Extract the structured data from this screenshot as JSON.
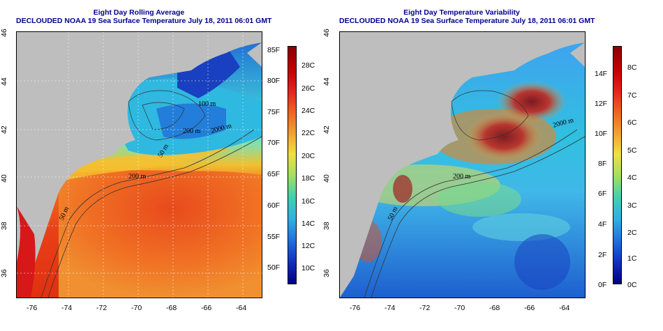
{
  "left_panel": {
    "title_line1": "Eight Day Rolling Average",
    "title_line2": "DECLOUDED NOAA 19 Sea Surface Temperature July 18, 2011 06:01 GMT",
    "y_ticks": [
      "46",
      "44",
      "42",
      "40",
      "38",
      "36"
    ],
    "x_ticks": [
      "-76",
      "-74",
      "-72",
      "-70",
      "-68",
      "-66",
      "-64"
    ],
    "contours": [
      "2000 m",
      "200 m",
      "200 m",
      "50 m",
      "50 m",
      "100 m",
      "100 m"
    ],
    "colorbar_f": [
      "85F",
      "80F",
      "75F",
      "70F",
      "65F",
      "60F",
      "55F",
      "50F"
    ],
    "colorbar_c": [
      "28C",
      "26C",
      "24C",
      "22C",
      "20C",
      "18C",
      "16C",
      "14C",
      "12C",
      "10C"
    ],
    "colors": {
      "land": "#bebebe",
      "warm": "#e8401a",
      "cool": "#2a8fd6"
    }
  },
  "right_panel": {
    "title_line1": "Eight Day Temperature Variability",
    "title_line2": "DECLOUDED NOAA 19 Sea Surface Temperature July 18, 2011 06:01 GMT",
    "y_ticks": [
      "46",
      "44",
      "42",
      "40",
      "38",
      "36"
    ],
    "x_ticks": [
      "-76",
      "-74",
      "-72",
      "-70",
      "-68",
      "-66",
      "-64"
    ],
    "contours": [
      "2000 m",
      "200 m",
      "50 m"
    ],
    "colorbar_f": [
      "14F",
      "12F",
      "10F",
      "8F",
      "6F",
      "4F",
      "2F",
      "0F"
    ],
    "colorbar_c": [
      "8C",
      "7C",
      "6C",
      "5C",
      "4C",
      "3C",
      "2C",
      "1C",
      "0C"
    ],
    "colors": {
      "land": "#bebebe",
      "high": "#8b0000",
      "low": "#1e5fd0"
    }
  }
}
